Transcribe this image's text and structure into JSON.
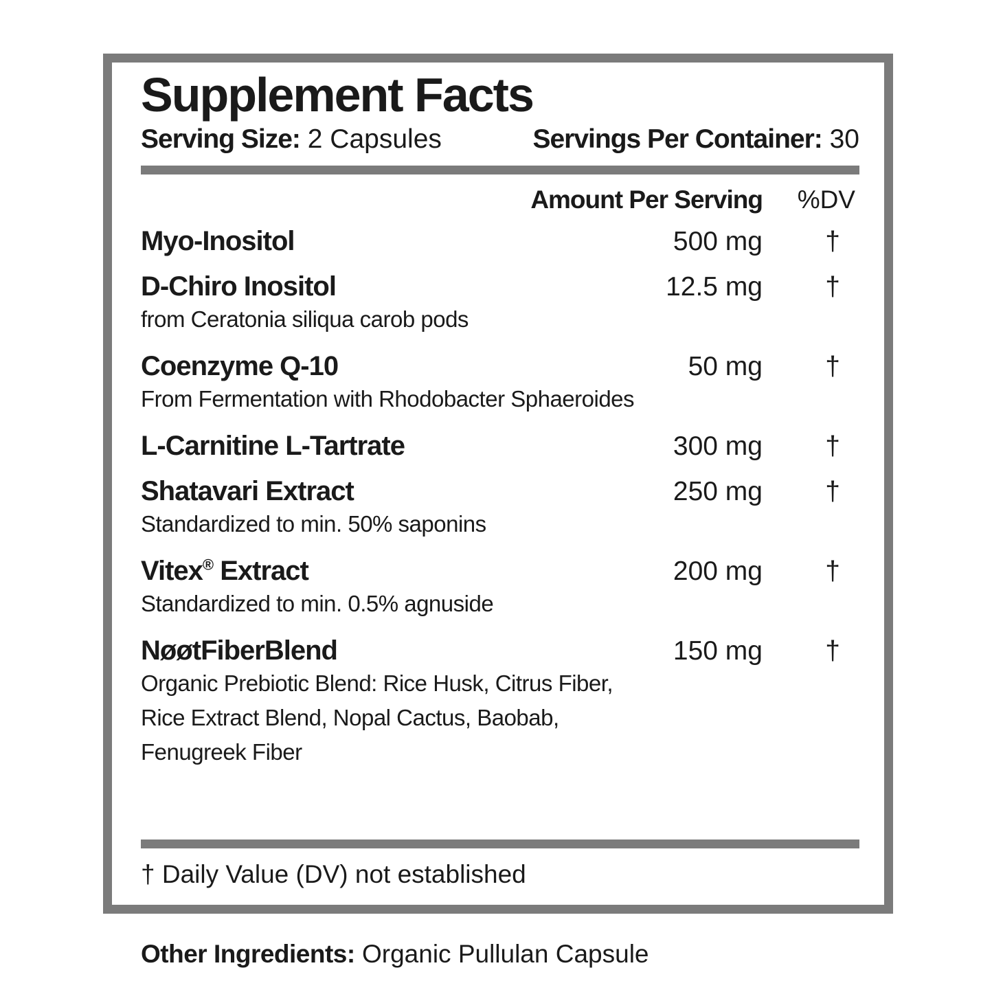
{
  "colors": {
    "border_gray": "#7b7b7b",
    "text_black": "#1a1a1a",
    "background": "#ffffff"
  },
  "title": "Supplement Facts",
  "serving": {
    "size_label": "Serving Size:",
    "size_value": "2 Capsules",
    "per_container_label": "Servings Per Container:",
    "per_container_value": "30"
  },
  "columns": {
    "amount_header": "Amount Per Serving",
    "dv_header": "%DV"
  },
  "ingredients": [
    {
      "name": "Myo-Inositol",
      "amount": "500 mg",
      "dv": "†"
    },
    {
      "name": "D-Chiro Inositol",
      "sub": "from Ceratonia siliqua carob pods",
      "amount": "12.5 mg",
      "dv": "†"
    },
    {
      "name": "Coenzyme Q-10",
      "sub": "From Fermentation with Rhodobacter Sphaeroides",
      "amount": "50 mg",
      "dv": "†"
    },
    {
      "name": "L-Carnitine L-Tartrate",
      "amount": "300 mg",
      "dv": "†"
    },
    {
      "name": "Shatavari Extract",
      "sub": "Standardized to min. 50% saponins",
      "amount": "250 mg",
      "dv": "†"
    },
    {
      "name": "Vitex",
      "name_mark": "®",
      "name_rest": " Extract",
      "sub": "Standardized to min. 0.5% agnuside",
      "amount": "200 mg",
      "dv": "†"
    },
    {
      "name": "NøøtFiberBlend",
      "sub": "Organic Prebiotic Blend: Rice Husk, Citrus Fiber,\nRice Extract Blend, Nopal Cactus, Baobab,\nFenugreek Fiber",
      "amount": "150 mg",
      "dv": "†"
    }
  ],
  "footnote": "† Daily Value (DV) not established",
  "other_ingredients": {
    "label": "Other Ingredients:",
    "value": " Organic Pullulan Capsule"
  }
}
